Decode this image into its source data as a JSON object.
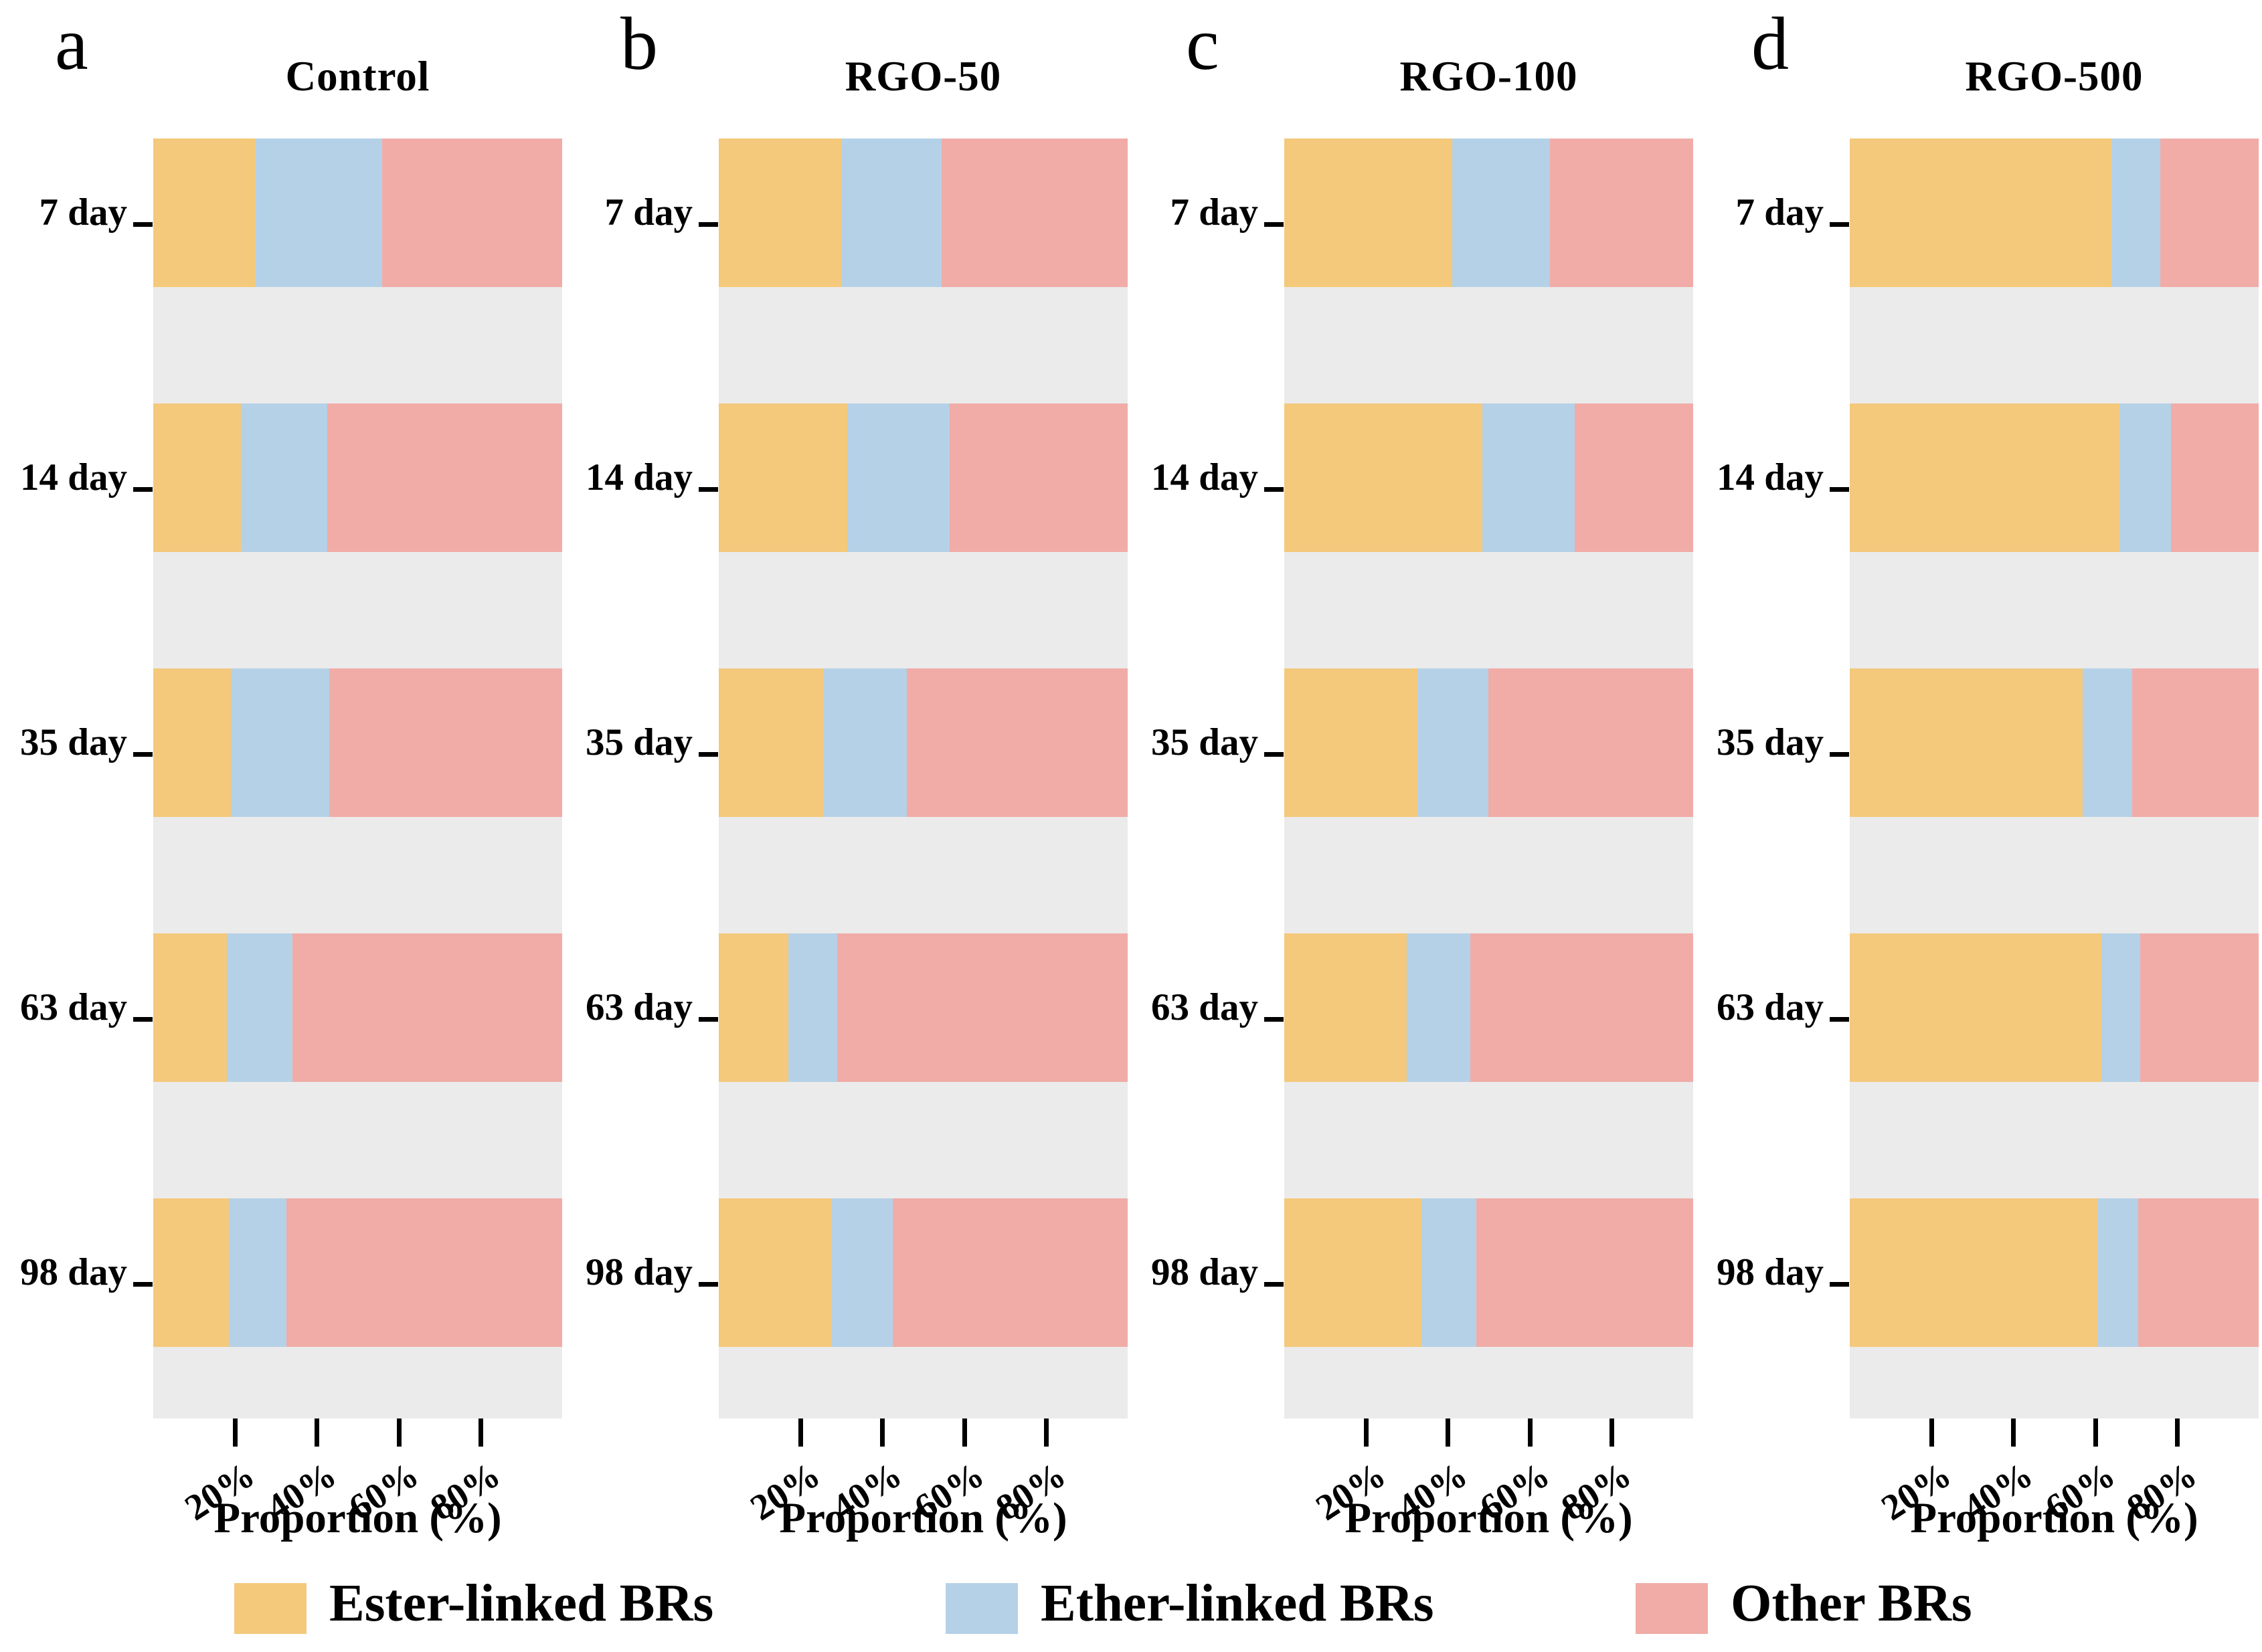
{
  "axis": {
    "xlabel": "Proportion (%)",
    "xlim": [
      0,
      100
    ],
    "ticks": [
      {
        "label": "20%",
        "value": 20
      },
      {
        "label": "40%",
        "value": 40
      },
      {
        "label": "60%",
        "value": 60
      },
      {
        "label": "80%",
        "value": 80
      }
    ]
  },
  "legend": [
    {
      "name": "Ester-linked BRs",
      "color": "#F4C97B"
    },
    {
      "name": "Ether-linked BRs",
      "color": "#B5D1E7"
    },
    {
      "name": "Other BRs",
      "color": "#F1ACA7"
    }
  ],
  "colors": {
    "ester": "#F4C97B",
    "ether": "#B5D1E7",
    "other": "#F1ACA7",
    "row_gap": "#EBEBEB",
    "background": "#FFFFFF",
    "text": "#000000"
  },
  "chart_data": [
    {
      "type": "bar",
      "orientation": "horizontal",
      "stacked": true,
      "panel_letter": "a",
      "title": "Control",
      "categories": [
        "7 day",
        "14 day",
        "35 day",
        "63 day",
        "98 day"
      ],
      "xlabel": "Proportion (%)",
      "xlim": [
        0,
        100
      ],
      "xticks": [
        20,
        40,
        60,
        80
      ],
      "grid": false,
      "legend_position": "bottom",
      "series": [
        {
          "name": "Ester-linked BRs",
          "values": [
            25,
            21.5,
            19,
            18,
            18.5
          ]
        },
        {
          "name": "Ether-linked BRs",
          "values": [
            31,
            21,
            24,
            16,
            14
          ]
        },
        {
          "name": "Other BRs",
          "values": [
            44,
            57.5,
            57,
            66,
            67.5
          ]
        }
      ]
    },
    {
      "type": "bar",
      "orientation": "horizontal",
      "stacked": true,
      "panel_letter": "b",
      "title": "RGO-50",
      "categories": [
        "7 day",
        "14 day",
        "35 day",
        "63 day",
        "98 day"
      ],
      "xlabel": "Proportion (%)",
      "xlim": [
        0,
        100
      ],
      "xticks": [
        20,
        40,
        60,
        80
      ],
      "grid": false,
      "legend_position": "bottom",
      "series": [
        {
          "name": "Ester-linked BRs",
          "values": [
            30,
            31.5,
            25.5,
            17,
            27.5
          ]
        },
        {
          "name": "Ether-linked BRs",
          "values": [
            24.5,
            25,
            20.5,
            12,
            15
          ]
        },
        {
          "name": "Other BRs",
          "values": [
            45.5,
            43.5,
            54,
            71,
            57.5
          ]
        }
      ]
    },
    {
      "type": "bar",
      "orientation": "horizontal",
      "stacked": true,
      "panel_letter": "c",
      "title": "RGO-100",
      "categories": [
        "7 day",
        "14 day",
        "35 day",
        "63 day",
        "98 day"
      ],
      "xlabel": "Proportion (%)",
      "xlim": [
        0,
        100
      ],
      "xticks": [
        20,
        40,
        60,
        80
      ],
      "grid": false,
      "legend_position": "bottom",
      "series": [
        {
          "name": "Ester-linked BRs",
          "values": [
            41,
            48.5,
            32.5,
            30,
            33.5
          ]
        },
        {
          "name": "Ether-linked BRs",
          "values": [
            24,
            22.5,
            17.5,
            15.5,
            13.5
          ]
        },
        {
          "name": "Other BRs",
          "values": [
            35,
            29,
            50,
            54.5,
            53
          ]
        }
      ]
    },
    {
      "type": "bar",
      "orientation": "horizontal",
      "stacked": true,
      "panel_letter": "d",
      "title": "RGO-500",
      "categories": [
        "7 day",
        "14 day",
        "35 day",
        "63 day",
        "98 day"
      ],
      "xlabel": "Proportion (%)",
      "xlim": [
        0,
        100
      ],
      "xticks": [
        20,
        40,
        60,
        80
      ],
      "grid": false,
      "legend_position": "bottom",
      "series": [
        {
          "name": "Ester-linked BRs",
          "values": [
            64,
            66,
            57,
            61.5,
            60.5
          ]
        },
        {
          "name": "Ether-linked BRs",
          "values": [
            12,
            12.5,
            12,
            9.5,
            10
          ]
        },
        {
          "name": "Other BRs",
          "values": [
            24,
            21.5,
            31,
            29,
            29.5
          ]
        }
      ]
    }
  ]
}
